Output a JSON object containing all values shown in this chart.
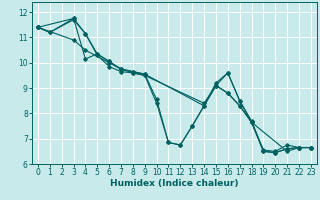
{
  "xlabel": "Humidex (Indice chaleur)",
  "ylabel": "",
  "bg_color": "#c8eaea",
  "line_color": "#006060",
  "grid_color": "#ffffff",
  "xlim": [
    -0.5,
    23.5
  ],
  "ylim": [
    6,
    12.4
  ],
  "xticks": [
    0,
    1,
    2,
    3,
    4,
    5,
    6,
    7,
    8,
    9,
    10,
    11,
    12,
    13,
    14,
    15,
    16,
    17,
    18,
    19,
    20,
    21,
    22,
    23
  ],
  "yticks": [
    6,
    7,
    8,
    9,
    10,
    11,
    12
  ],
  "tick_fontsize": 5.5,
  "xlabel_fontsize": 6.5,
  "lines": [
    {
      "x": [
        0,
        1,
        3,
        4,
        5,
        6,
        7,
        8,
        9,
        10,
        11,
        12,
        13,
        14,
        15,
        16,
        17,
        18,
        19,
        20,
        21,
        22,
        23
      ],
      "y": [
        11.4,
        11.2,
        11.7,
        11.15,
        10.3,
        9.85,
        9.65,
        9.6,
        9.5,
        8.4,
        6.85,
        6.75,
        7.5,
        8.3,
        9.2,
        9.6,
        8.5,
        7.7,
        6.55,
        6.5,
        6.75,
        6.65,
        6.65
      ]
    },
    {
      "x": [
        0,
        3,
        4,
        5,
        6,
        7,
        8,
        9,
        14,
        15,
        16,
        17,
        18,
        19,
        20,
        21,
        22,
        23
      ],
      "y": [
        11.4,
        11.75,
        10.15,
        10.35,
        10.05,
        9.75,
        9.65,
        9.55,
        8.3,
        9.1,
        8.8,
        8.3,
        7.65,
        6.5,
        6.45,
        6.6,
        6.65,
        6.65
      ]
    },
    {
      "x": [
        0,
        3,
        4,
        6,
        7,
        8,
        9,
        14,
        15,
        16,
        17,
        18,
        21,
        22,
        23
      ],
      "y": [
        11.4,
        10.9,
        10.5,
        10.0,
        9.75,
        9.6,
        9.5,
        8.4,
        9.1,
        8.8,
        8.3,
        7.65,
        6.5,
        6.65,
        6.65
      ]
    },
    {
      "x": [
        0,
        1,
        3,
        4,
        5,
        6,
        7,
        8,
        9,
        10,
        11,
        12,
        13,
        15,
        16,
        17,
        18,
        19,
        20,
        21,
        22,
        23
      ],
      "y": [
        11.4,
        11.2,
        11.75,
        11.15,
        10.35,
        10.05,
        9.75,
        9.65,
        9.55,
        8.55,
        6.85,
        6.75,
        7.5,
        9.1,
        9.6,
        8.5,
        7.65,
        6.5,
        6.45,
        6.6,
        6.65,
        6.65
      ]
    }
  ]
}
